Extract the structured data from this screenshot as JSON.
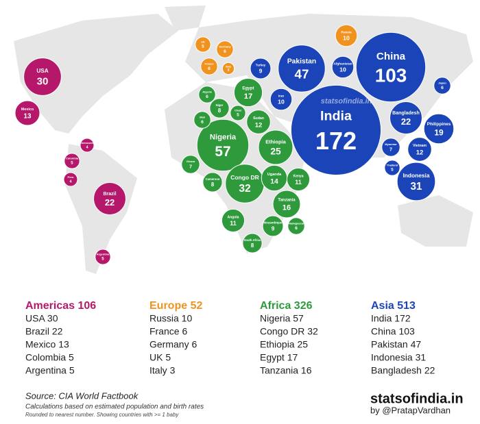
{
  "watermark": "statsofindia.in",
  "regions": [
    {
      "name": "Americas",
      "color": "#b5186b",
      "bubbles": [
        {
          "label": "USA",
          "value": 30
        },
        {
          "label": "Brazil",
          "value": 22
        },
        {
          "label": "Mexico",
          "value": 13
        },
        {
          "label": "Colombia",
          "value": 5
        },
        {
          "label": "Argentina",
          "value": 5
        },
        {
          "label": "Peru",
          "value": 4
        },
        {
          "label": "Venezuela",
          "value": 4
        }
      ]
    },
    {
      "name": "Europe",
      "color": "#f0921e",
      "bubbles": [
        {
          "label": "Russia",
          "value": 10
        },
        {
          "label": "France",
          "value": 6
        },
        {
          "label": "Germany",
          "value": 6
        },
        {
          "label": "UK",
          "value": 5
        },
        {
          "label": "Italy",
          "value": 3
        }
      ]
    },
    {
      "name": "Africa",
      "color": "#2e9a3b",
      "bubbles": [
        {
          "label": "Nigeria",
          "value": 57
        },
        {
          "label": "Congo DR",
          "value": 32
        },
        {
          "label": "Ethiopia",
          "value": 25
        },
        {
          "label": "Egypt",
          "value": 17
        },
        {
          "label": "Tanzania",
          "value": 16
        },
        {
          "label": "Uganda",
          "value": 14
        },
        {
          "label": "Sudan",
          "value": 12
        },
        {
          "label": "Kenya",
          "value": 11
        },
        {
          "label": "Angola",
          "value": 11
        },
        {
          "label": "Mozambique",
          "value": 9
        },
        {
          "label": "Niger",
          "value": 8
        },
        {
          "label": "Cameroon",
          "value": 8
        },
        {
          "label": "South Africa",
          "value": 8
        },
        {
          "label": "Ghana",
          "value": 7
        },
        {
          "label": "Mali",
          "value": 6
        },
        {
          "label": "Algeria",
          "value": 6
        },
        {
          "label": "Madagascar",
          "value": 6
        },
        {
          "label": "Chad",
          "value": 5
        }
      ]
    },
    {
      "name": "Asia",
      "color": "#1a44b8",
      "bubbles": [
        {
          "label": "India",
          "value": 172
        },
        {
          "label": "China",
          "value": 103
        },
        {
          "label": "Pakistan",
          "value": 47
        },
        {
          "label": "Indonesia",
          "value": 31
        },
        {
          "label": "Bangladesh",
          "value": 22
        },
        {
          "label": "Philippines",
          "value": 19
        },
        {
          "label": "Vietnam",
          "value": 12
        },
        {
          "label": "Afghanistan",
          "value": 10
        },
        {
          "label": "Iran",
          "value": 10
        },
        {
          "label": "Turkey",
          "value": 9
        },
        {
          "label": "Myanmar",
          "value": 7
        },
        {
          "label": "Japan",
          "value": 6
        },
        {
          "label": "Thailand",
          "value": 5
        }
      ]
    }
  ],
  "legend": [
    {
      "title": "Americas 106",
      "items": [
        "USA 30",
        "Brazil 22",
        "Mexico 13",
        "Colombia 5",
        "Argentina 5"
      ]
    },
    {
      "title": "Europe 52",
      "items": [
        "Russia 10",
        "France 6",
        "Germany 6",
        "UK 5",
        "Italy 3"
      ]
    },
    {
      "title": "Africa 326",
      "items": [
        "Nigeria 57",
        "Congo DR 32",
        "Ethiopia 25",
        "Egypt 17",
        "Tanzania 16"
      ]
    },
    {
      "title": "Asia 513",
      "items": [
        "India 172",
        "China 103",
        "Pakistan 47",
        "Indonesia 31",
        "Bangladesh 22"
      ]
    }
  ],
  "footer": {
    "source": "Source: CIA World Factbook",
    "note": "Calculations based on estimated population and birth rates",
    "fineprint": "Rounded to nearest number. Showing countries with >= 1 baby",
    "brand": "statsofindia.in",
    "byline": "by @PratapVardhan"
  }
}
